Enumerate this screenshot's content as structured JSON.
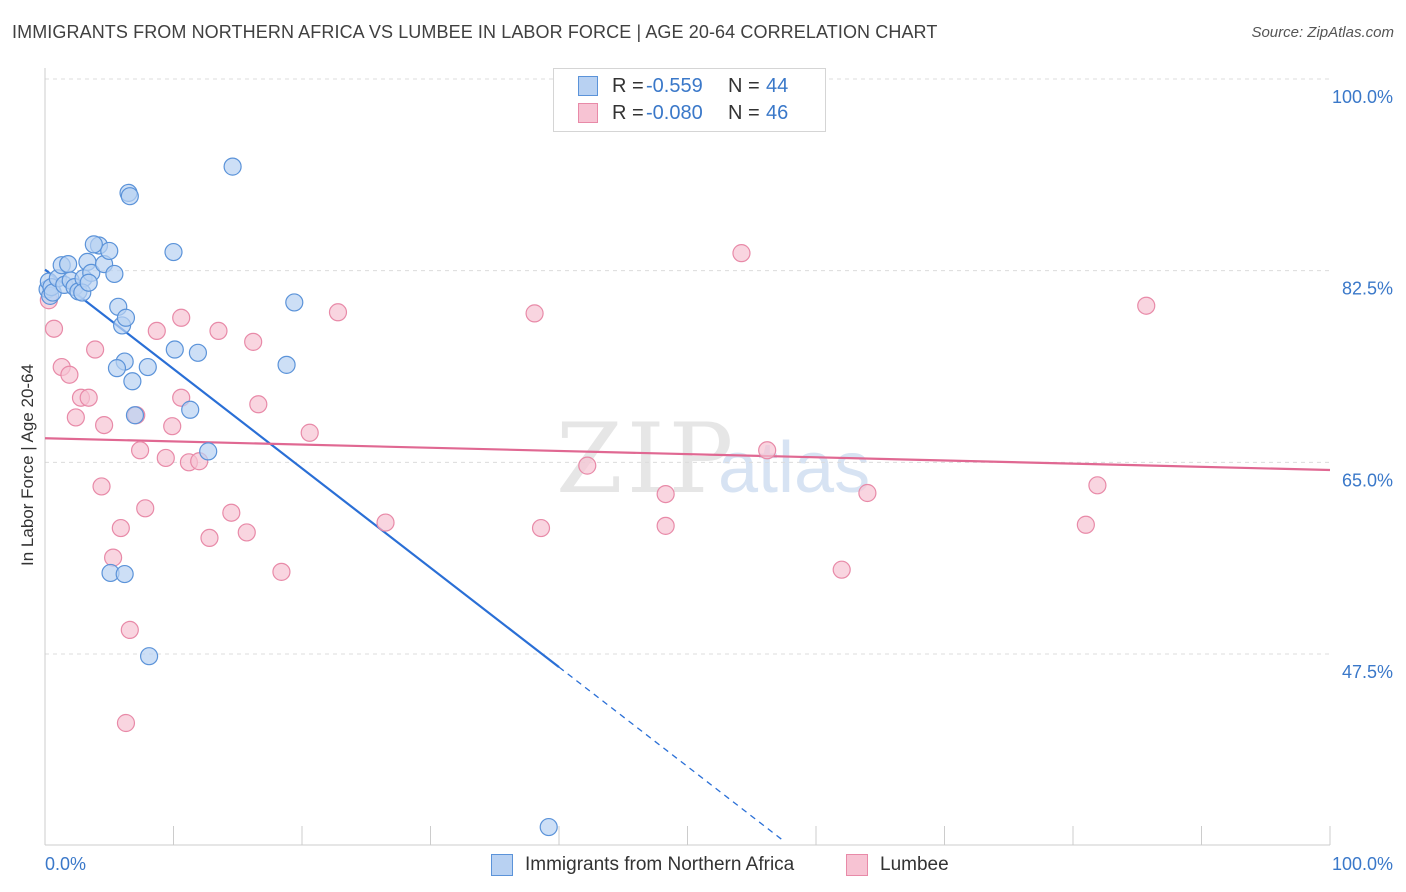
{
  "title": "IMMIGRANTS FROM NORTHERN AFRICA VS LUMBEE IN LABOR FORCE | AGE 20-64 CORRELATION CHART",
  "source": "Source: ZipAtlas.com",
  "watermark": {
    "zip": "ZIP",
    "atlas": "atlas"
  },
  "colors": {
    "blue_fill": "#b8d1f2",
    "blue_stroke": "#5b93d9",
    "blue_line": "#2a6fd6",
    "pink_fill": "#f7c3d3",
    "pink_stroke": "#e88aa8",
    "pink_line": "#e06892",
    "tick_label": "#3a78c9",
    "grid": "#dcdcdc"
  },
  "legend": {
    "rows": [
      {
        "r_label": "R =",
        "r_value": "-0.559",
        "n_label": "N =",
        "n_value": "44"
      },
      {
        "r_label": "R =",
        "r_value": "-0.080",
        "n_label": "N =",
        "n_value": "46"
      }
    ]
  },
  "bottom_legend": {
    "series1": "Immigrants from Northern Africa",
    "series2": "Lumbee"
  },
  "chart_data": {
    "type": "scatter",
    "title": "IMMIGRANTS FROM NORTHERN AFRICA VS LUMBEE IN LABOR FORCE | AGE 20-64 CORRELATION CHART",
    "xlabel": "",
    "ylabel": "In Labor Force | Age 20-64",
    "xlim": [
      0,
      100
    ],
    "ylim": [
      29.5,
      102
    ],
    "x_tick_labels": [
      "0.0%",
      "100.0%"
    ],
    "y_ticks": [
      {
        "value": 100.0,
        "label": "100.0%"
      },
      {
        "value": 82.5,
        "label": "82.5%"
      },
      {
        "value": 65.0,
        "label": "65.0%"
      },
      {
        "value": 47.5,
        "label": "47.5%"
      }
    ],
    "series": [
      {
        "name": "Immigrants from Northern Africa",
        "color": "#5b93d9",
        "points": [
          [
            0.2,
            80.8
          ],
          [
            0.3,
            81.5
          ],
          [
            0.4,
            80.2
          ],
          [
            0.5,
            81.0
          ],
          [
            0.6,
            80.5
          ],
          [
            1.0,
            81.8
          ],
          [
            1.3,
            83.0
          ],
          [
            1.5,
            81.2
          ],
          [
            1.8,
            83.1
          ],
          [
            2.0,
            81.6
          ],
          [
            2.3,
            81.0
          ],
          [
            2.6,
            80.6
          ],
          [
            3.0,
            81.8
          ],
          [
            3.3,
            83.3
          ],
          [
            3.6,
            82.3
          ],
          [
            4.2,
            84.8
          ],
          [
            4.6,
            83.1
          ],
          [
            5.0,
            84.3
          ],
          [
            5.4,
            82.2
          ],
          [
            5.7,
            79.2
          ],
          [
            6.0,
            77.5
          ],
          [
            6.3,
            78.2
          ],
          [
            6.2,
            74.2
          ],
          [
            5.6,
            73.6
          ],
          [
            6.8,
            72.4
          ],
          [
            7.0,
            69.3
          ],
          [
            8.0,
            73.7
          ],
          [
            6.5,
            89.6
          ],
          [
            6.6,
            89.3
          ],
          [
            10.0,
            84.2
          ],
          [
            10.1,
            75.3
          ],
          [
            11.9,
            75.0
          ],
          [
            14.6,
            92.0
          ],
          [
            12.7,
            66.0
          ],
          [
            11.3,
            69.8
          ],
          [
            19.4,
            79.6
          ],
          [
            18.8,
            73.9
          ],
          [
            5.1,
            54.9
          ],
          [
            6.2,
            54.8
          ],
          [
            8.1,
            47.3
          ],
          [
            3.8,
            84.9
          ],
          [
            2.9,
            80.5
          ],
          [
            3.4,
            81.4
          ],
          [
            39.2,
            31.7
          ]
        ],
        "trend": {
          "x0": 0.0,
          "y0": 82.6,
          "x1": 40.0,
          "y1": 46.3,
          "dash_to_x": 57.5
        }
      },
      {
        "name": "Lumbee",
        "color": "#e88aa8",
        "points": [
          [
            0.3,
            79.8
          ],
          [
            0.7,
            77.2
          ],
          [
            1.3,
            73.7
          ],
          [
            1.9,
            73.0
          ],
          [
            2.4,
            69.1
          ],
          [
            2.8,
            70.9
          ],
          [
            3.4,
            70.9
          ],
          [
            3.9,
            75.3
          ],
          [
            4.4,
            62.8
          ],
          [
            4.6,
            68.4
          ],
          [
            5.3,
            56.3
          ],
          [
            5.9,
            59.0
          ],
          [
            6.3,
            41.2
          ],
          [
            6.6,
            49.7
          ],
          [
            7.1,
            69.3
          ],
          [
            7.4,
            66.1
          ],
          [
            7.8,
            60.8
          ],
          [
            8.7,
            77.0
          ],
          [
            9.4,
            65.4
          ],
          [
            9.9,
            68.3
          ],
          [
            10.6,
            78.2
          ],
          [
            10.6,
            70.9
          ],
          [
            11.2,
            65.0
          ],
          [
            12.0,
            65.1
          ],
          [
            12.8,
            58.1
          ],
          [
            13.5,
            77.0
          ],
          [
            14.5,
            60.4
          ],
          [
            15.7,
            58.6
          ],
          [
            16.2,
            76.0
          ],
          [
            16.6,
            70.3
          ],
          [
            18.4,
            55.0
          ],
          [
            20.6,
            67.7
          ],
          [
            22.8,
            78.7
          ],
          [
            26.5,
            59.5
          ],
          [
            38.6,
            59.0
          ],
          [
            38.1,
            78.6
          ],
          [
            42.2,
            64.7
          ],
          [
            48.3,
            62.1
          ],
          [
            48.3,
            59.2
          ],
          [
            54.2,
            84.1
          ],
          [
            56.2,
            66.1
          ],
          [
            62.0,
            55.2
          ],
          [
            64.0,
            62.2
          ],
          [
            81.0,
            59.3
          ],
          [
            81.9,
            62.9
          ],
          [
            85.7,
            79.3
          ]
        ],
        "trend": {
          "x0": 0.0,
          "y0": 67.2,
          "x1": 100.0,
          "y1": 64.3
        }
      }
    ]
  }
}
